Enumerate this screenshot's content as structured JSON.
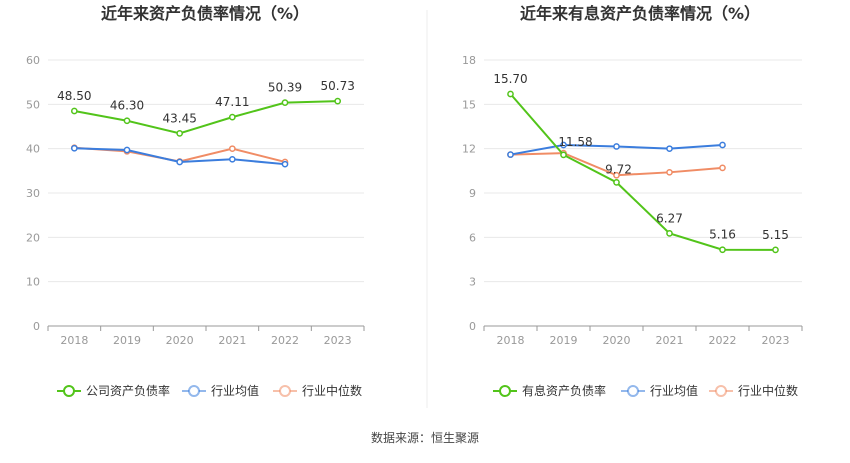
{
  "source_text": "数据来源：恒生聚源",
  "chart_data": [
    {
      "type": "line",
      "title": "近年来资产负债率情况（%）",
      "categories": [
        "2018",
        "2019",
        "2020",
        "2021",
        "2022",
        "2023"
      ],
      "ylim": [
        0,
        60
      ],
      "yticks": [
        "0",
        "10",
        "20",
        "30",
        "40",
        "50",
        "60"
      ],
      "series": [
        {
          "name": "公司资产负债率",
          "color": "#52c41a",
          "values": [
            48.5,
            46.3,
            43.45,
            47.11,
            50.39,
            50.73
          ],
          "labels": [
            "48.50",
            "46.30",
            "43.45",
            "47.11",
            "50.39",
            "50.73"
          ]
        },
        {
          "name": "行业均值",
          "color": "#3b7ddd",
          "values": [
            40.1,
            39.7,
            37.0,
            37.6,
            36.5,
            null
          ]
        },
        {
          "name": "行业中位数",
          "color": "#f08c65",
          "values": [
            40.2,
            39.4,
            37.1,
            40.0,
            37.0,
            null
          ]
        }
      ]
    },
    {
      "type": "line",
      "title": "近年来有息资产负债率情况（%）",
      "categories": [
        "2018",
        "2019",
        "2020",
        "2021",
        "2022",
        "2023"
      ],
      "ylim": [
        0,
        18
      ],
      "yticks": [
        "0",
        "3",
        "6",
        "9",
        "12",
        "15",
        "18"
      ],
      "series": [
        {
          "name": "有息资产负债率",
          "color": "#52c41a",
          "values": [
            15.7,
            11.58,
            9.72,
            6.27,
            5.16,
            5.15
          ],
          "labels": [
            "15.70",
            "11.58",
            "9.72",
            "6.27",
            "5.16",
            "5.15"
          ]
        },
        {
          "name": "行业均值",
          "color": "#3b7ddd",
          "values": [
            11.6,
            12.25,
            12.15,
            12.0,
            12.25,
            null
          ]
        },
        {
          "name": "行业中位数",
          "color": "#f08c65",
          "values": [
            11.6,
            11.7,
            10.2,
            10.4,
            10.7,
            null
          ]
        }
      ]
    }
  ]
}
